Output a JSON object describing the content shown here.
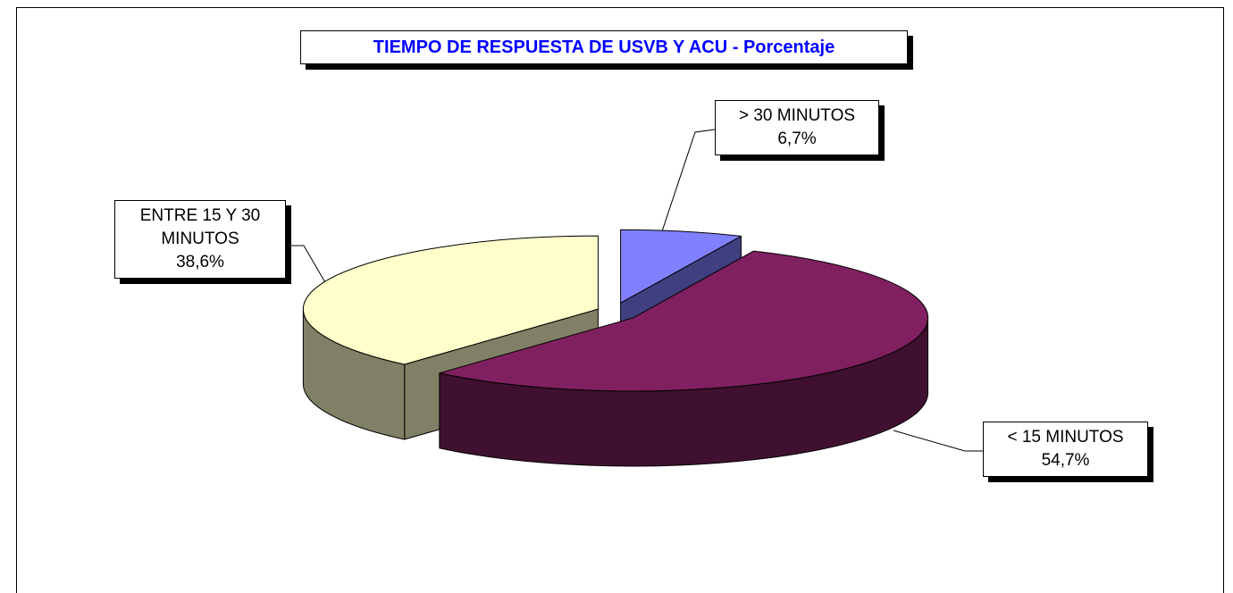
{
  "chart_data": {
    "type": "pie3d",
    "title": "TIEMPO DE RESPUESTA DE USVB Y ACU - Porcentaje",
    "categories": [
      "> 30 MINUTOS",
      "< 15 MINUTOS",
      "ENTRE 15 Y 30 MINUTOS"
    ],
    "values": [
      6.7,
      54.7,
      38.6
    ],
    "value_labels": [
      "6,7%",
      "54,7%",
      "38,6%"
    ],
    "colors": [
      "#8080ff",
      "#802060",
      "#ffffcc"
    ]
  }
}
